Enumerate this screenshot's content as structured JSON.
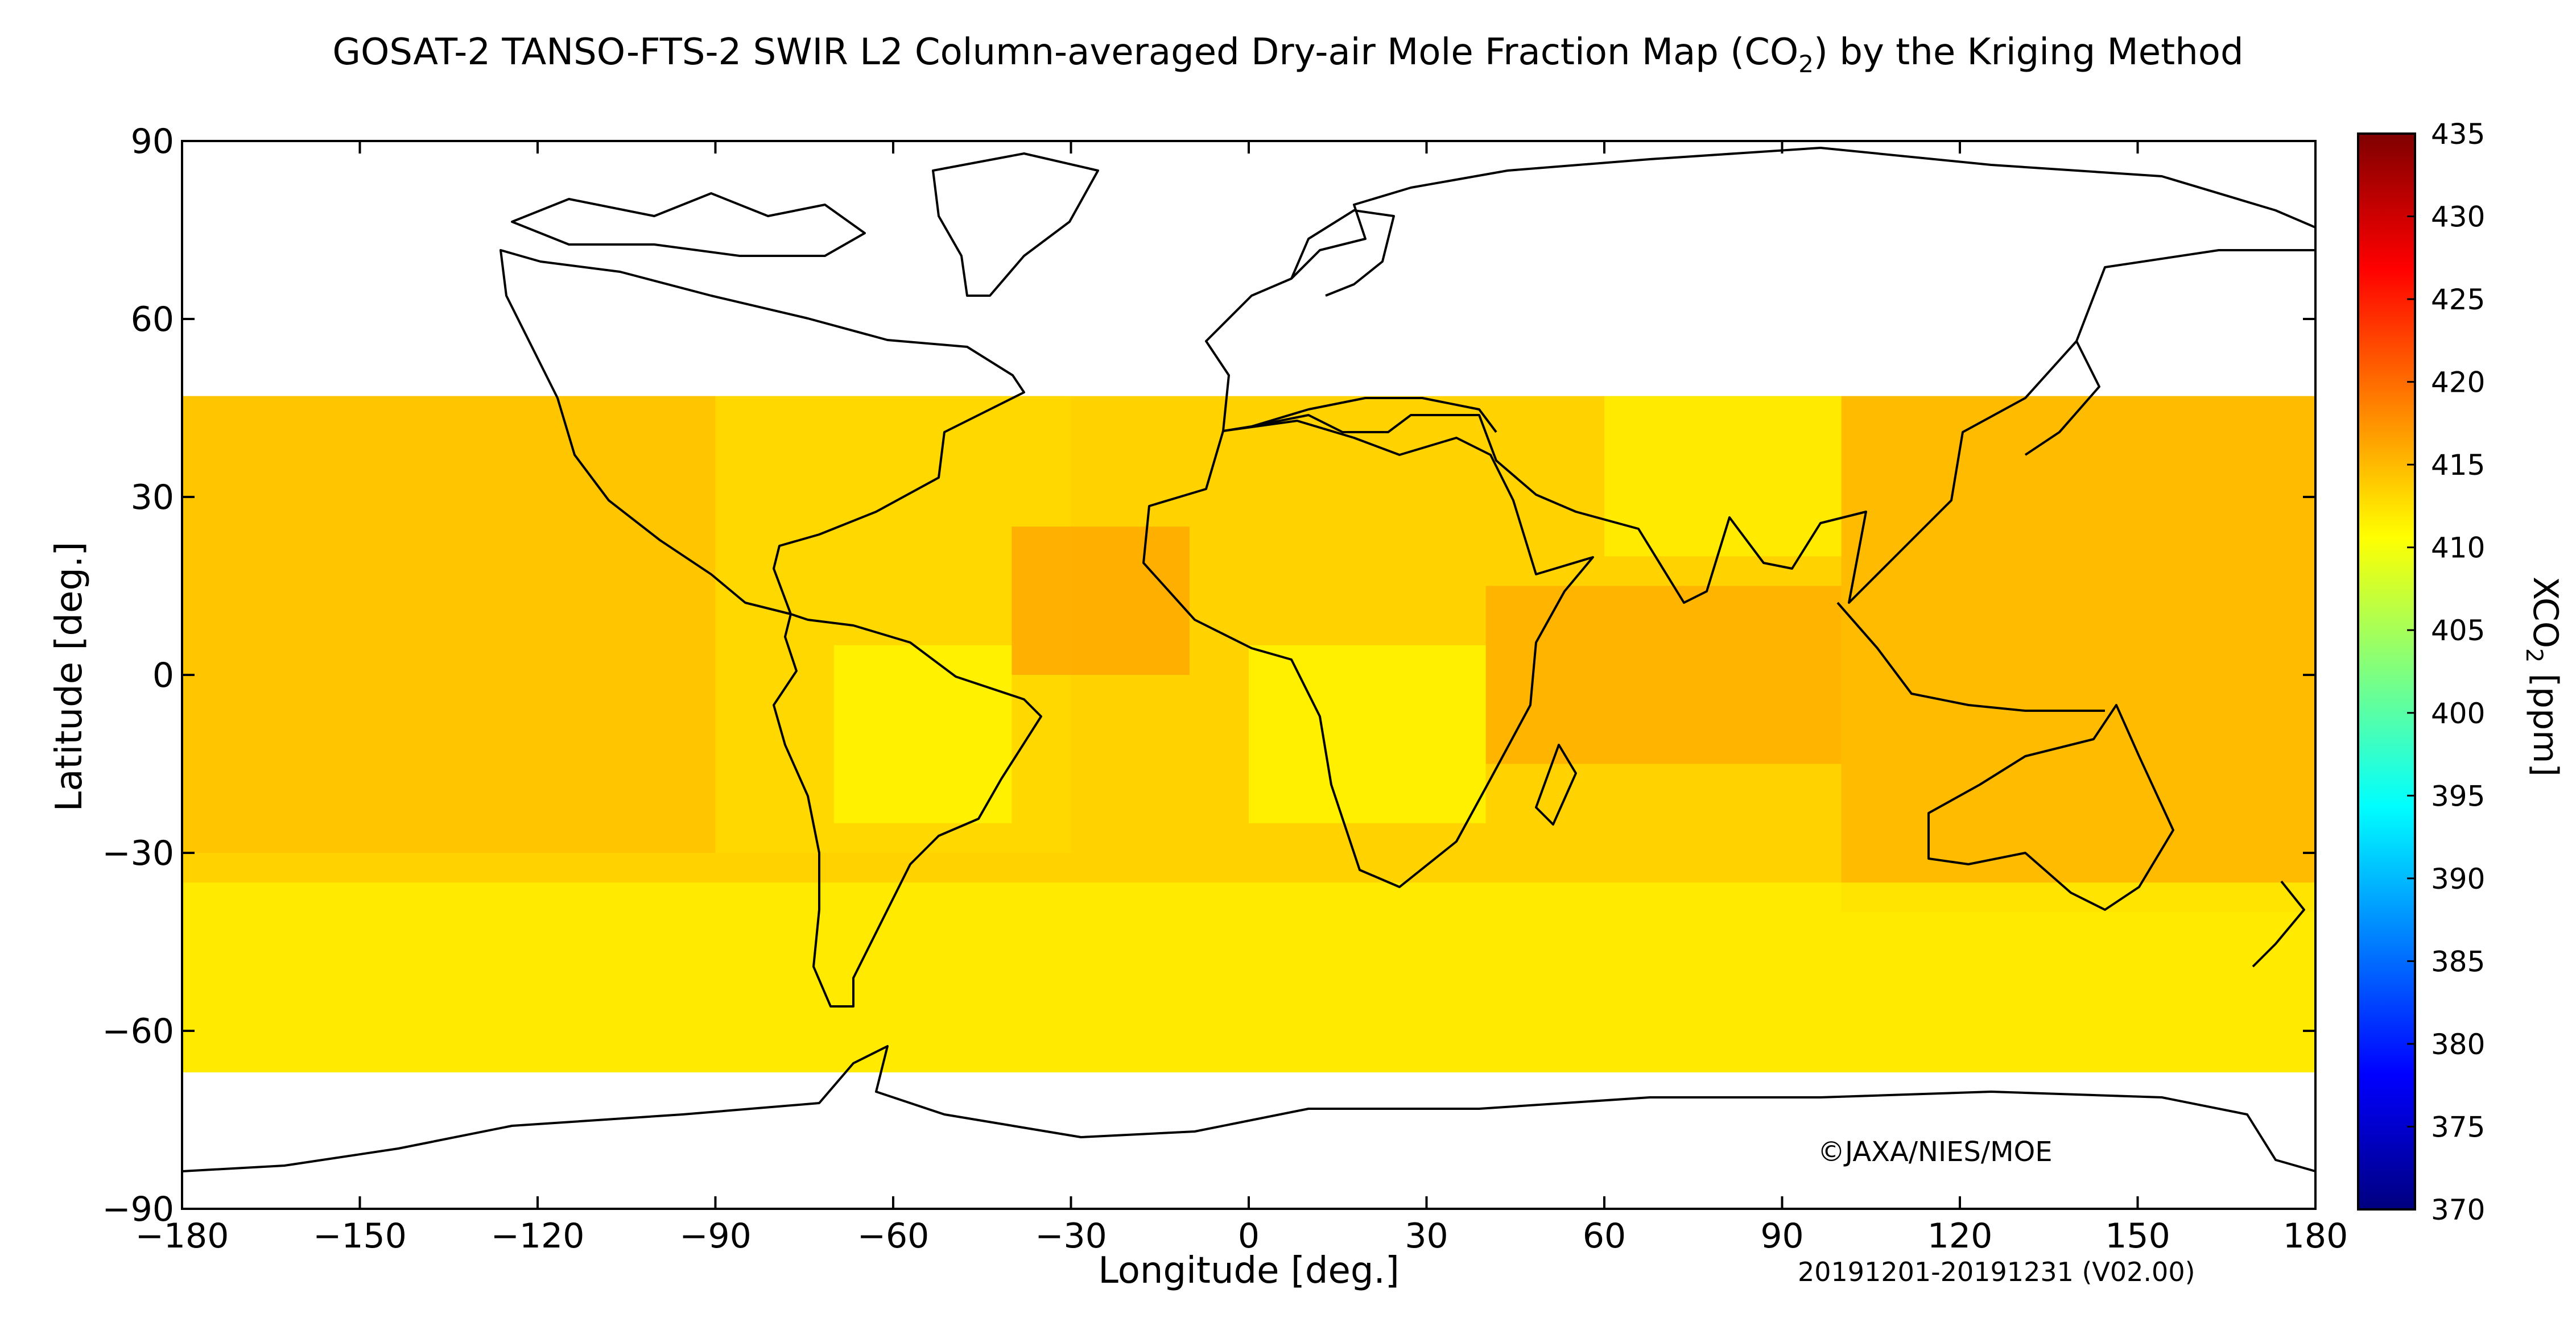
{
  "title_main": "GOSAT-2 TANSO-FTS-2 SWIR L2 Column-averaged Dry-air Mole Fraction Map (CO",
  "title_sub": "2",
  "title_end": ") by the Kriging Method",
  "map": {
    "xlabel": "Longitude [deg.]",
    "ylabel": "Latitude [deg.]",
    "xlim": [
      -180,
      180
    ],
    "ylim": [
      -90,
      90
    ],
    "xticks": [
      -180,
      -150,
      -120,
      -90,
      -60,
      -30,
      0,
      30,
      60,
      90,
      120,
      150,
      180
    ],
    "yticks": [
      -90,
      -60,
      -30,
      0,
      30,
      60,
      90
    ],
    "data_lat_range": [
      -67,
      47
    ],
    "copyright": "©JAXA/NIES/MOE",
    "period": "20191201-20191231 (V02.00)"
  },
  "colorbar": {
    "label_main": "XCO",
    "label_sub": "2",
    "label_unit": " [ppm]",
    "min": 370,
    "max": 435,
    "ticks": [
      370,
      375,
      380,
      385,
      390,
      395,
      400,
      405,
      410,
      415,
      420,
      425,
      430,
      435
    ],
    "colormap": "jet",
    "colors": [
      "#00007f",
      "#0000ff",
      "#007fff",
      "#00ffff",
      "#7fff7f",
      "#ffff00",
      "#ff7f00",
      "#ff0000",
      "#7f0000"
    ]
  },
  "chart_data": {
    "type": "heatmap",
    "variable": "XCO2",
    "unit": "ppm",
    "value_range_observed": [
      409,
      418
    ],
    "fields": [
      {
        "lon": [
          -180,
          -90
        ],
        "lat": [
          -30,
          47
        ],
        "value": 414.5
      },
      {
        "lon": [
          -90,
          -30
        ],
        "lat": [
          -30,
          47
        ],
        "value": 413
      },
      {
        "lon": [
          -40,
          -10
        ],
        "lat": [
          0,
          25
        ],
        "value": 416.5
      },
      {
        "lon": [
          -70,
          -40
        ],
        "lat": [
          -25,
          5
        ],
        "value": 411
      },
      {
        "lon": [
          0,
          40
        ],
        "lat": [
          -25,
          5
        ],
        "value": 411
      },
      {
        "lon": [
          40,
          100
        ],
        "lat": [
          -15,
          15
        ],
        "value": 416
      },
      {
        "lon": [
          60,
          100
        ],
        "lat": [
          20,
          47
        ],
        "value": 411.5
      },
      {
        "lon": [
          100,
          180
        ],
        "lat": [
          -40,
          47
        ],
        "value": 415.5
      },
      {
        "lon": [
          -180,
          180
        ],
        "lat": [
          -67,
          -35
        ],
        "value": 411.5
      }
    ]
  }
}
